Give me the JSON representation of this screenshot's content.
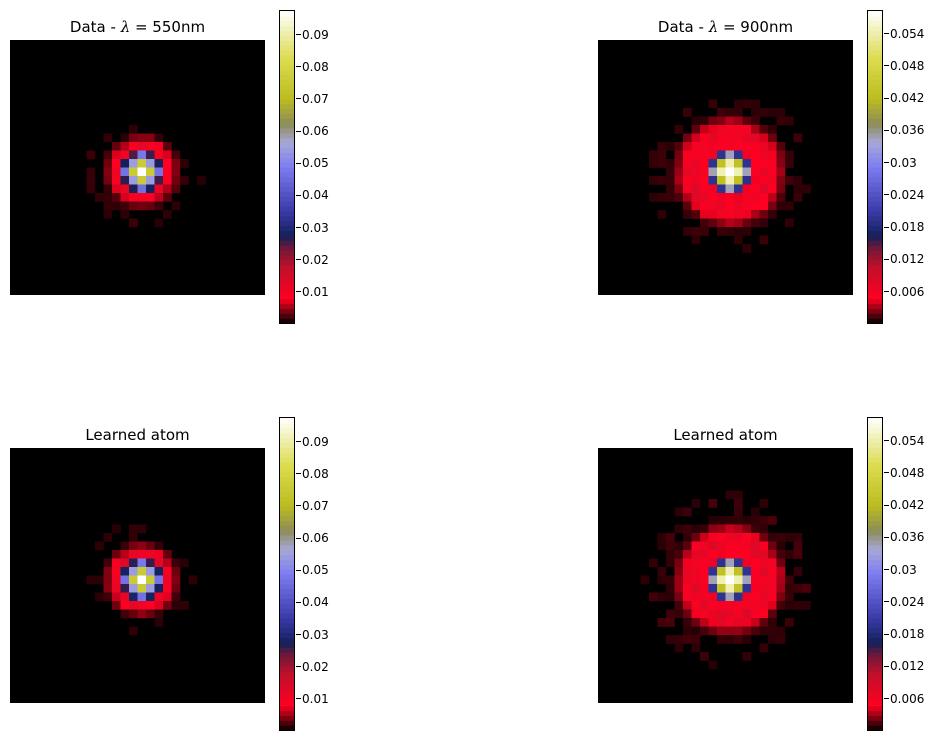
{
  "colormap": {
    "name": "gist_stern-like",
    "stops": [
      {
        "pos": 0.0,
        "color": "#000000"
      },
      {
        "pos": 0.08,
        "color": "#ff0022"
      },
      {
        "pos": 0.18,
        "color": "#c0102a"
      },
      {
        "pos": 0.24,
        "color": "#701838"
      },
      {
        "pos": 0.28,
        "color": "#14205a"
      },
      {
        "pos": 0.36,
        "color": "#3a3aa8"
      },
      {
        "pos": 0.5,
        "color": "#7c7cf0"
      },
      {
        "pos": 0.58,
        "color": "#a8a8d8"
      },
      {
        "pos": 0.64,
        "color": "#8c8c58"
      },
      {
        "pos": 0.72,
        "color": "#bcbc20"
      },
      {
        "pos": 0.85,
        "color": "#dcdc50"
      },
      {
        "pos": 1.0,
        "color": "#ffffff"
      }
    ]
  },
  "chart_data": [
    {
      "type": "heatmap",
      "title_prefix": "Data - ",
      "title_symbol": "λ",
      "title_suffix": " = 550nm",
      "xlabel": "",
      "ylabel": "",
      "axes_visible": false,
      "grid_size": 30,
      "vmax": 0.097,
      "colorbar_ticks": [
        0.01,
        0.02,
        0.03,
        0.04,
        0.05,
        0.06,
        0.07,
        0.08,
        0.09
      ],
      "pattern": {
        "center": [
          15,
          15
        ],
        "peak": 0.097,
        "core_sigma": 0.9,
        "ring_radius": 2.8,
        "ring_width": 0.9,
        "ring_level": 0.009,
        "lobe_level": 0.045,
        "outer_radius": 6.0,
        "outer_level": 0.0018
      }
    },
    {
      "type": "heatmap",
      "title_prefix": "Data - ",
      "title_symbol": "λ",
      "title_suffix": " = 900nm",
      "xlabel": "",
      "ylabel": "",
      "axes_visible": false,
      "grid_size": 30,
      "vmax": 0.058,
      "colorbar_ticks": [
        0.006,
        0.012,
        0.018,
        0.024,
        0.03,
        0.036,
        0.042,
        0.048,
        0.054
      ],
      "pattern": {
        "center": [
          15,
          15
        ],
        "peak": 0.058,
        "core_sigma": 1.2,
        "ring_radius": 4.6,
        "ring_width": 1.1,
        "ring_level": 0.0065,
        "lobe_level": 0.027,
        "outer_radius": 8.5,
        "outer_level": 0.0012
      }
    },
    {
      "type": "heatmap",
      "title": "Learned atom",
      "xlabel": "",
      "ylabel": "",
      "axes_visible": false,
      "grid_size": 30,
      "vmax": 0.097,
      "colorbar_ticks": [
        0.01,
        0.02,
        0.03,
        0.04,
        0.05,
        0.06,
        0.07,
        0.08,
        0.09
      ],
      "pattern": {
        "center": [
          15,
          15
        ],
        "peak": 0.097,
        "core_sigma": 0.9,
        "ring_radius": 2.8,
        "ring_width": 0.9,
        "ring_level": 0.01,
        "lobe_level": 0.045,
        "outer_radius": 6.2,
        "outer_level": 0.0015
      }
    },
    {
      "type": "heatmap",
      "title": "Learned atom",
      "xlabel": "",
      "ylabel": "",
      "axes_visible": false,
      "grid_size": 30,
      "vmax": 0.058,
      "colorbar_ticks": [
        0.006,
        0.012,
        0.018,
        0.024,
        0.03,
        0.036,
        0.042,
        0.048,
        0.054
      ],
      "pattern": {
        "center": [
          15,
          15
        ],
        "peak": 0.058,
        "core_sigma": 1.2,
        "ring_radius": 4.6,
        "ring_width": 1.1,
        "ring_level": 0.007,
        "lobe_level": 0.027,
        "outer_radius": 8.8,
        "outer_level": 0.0014
      }
    }
  ]
}
